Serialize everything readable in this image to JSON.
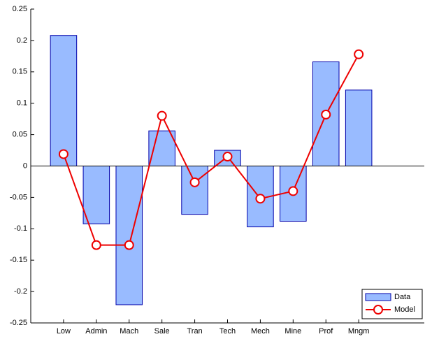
{
  "chart_data": {
    "type": "bar",
    "categories": [
      "Low",
      "Admin",
      "Mach",
      "Sale",
      "Tran",
      "Tech",
      "Mech",
      "Mine",
      "Prof",
      "Mngm"
    ],
    "series": [
      {
        "name": "Data",
        "type": "bar",
        "color": "#99bbff",
        "values": [
          0.208,
          -0.092,
          -0.221,
          0.056,
          -0.077,
          0.025,
          -0.097,
          -0.088,
          0.166,
          0.121
        ]
      },
      {
        "name": "Model",
        "type": "line",
        "color": "#ee0000",
        "values": [
          0.019,
          -0.126,
          -0.126,
          0.08,
          -0.026,
          0.015,
          -0.052,
          -0.04,
          0.082,
          0.178
        ]
      }
    ],
    "ylim": [
      -0.25,
      0.25
    ],
    "yticks": [
      -0.25,
      -0.2,
      -0.15,
      -0.1,
      -0.05,
      0,
      0.05,
      0.1,
      0.15,
      0.2,
      0.25
    ],
    "legend": "lower right"
  }
}
